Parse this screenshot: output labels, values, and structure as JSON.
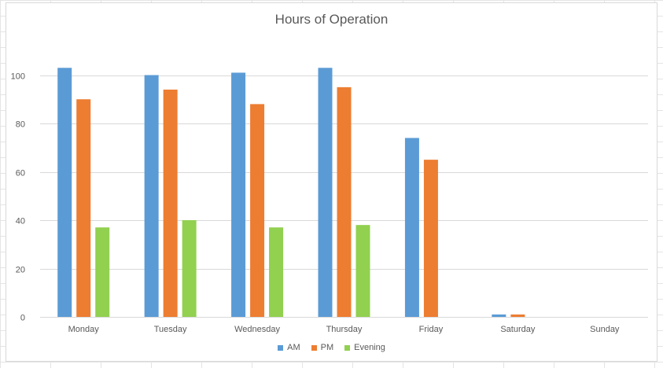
{
  "chart_data": {
    "type": "bar",
    "title": "Hours of Operation",
    "categories": [
      "Monday",
      "Tuesday",
      "Wednesday",
      "Thursday",
      "Friday",
      "Saturday",
      "Sunday"
    ],
    "series": [
      {
        "name": "AM",
        "color": "#5b9bd5",
        "values": [
          103,
          100,
          101,
          103,
          74,
          1,
          0
        ]
      },
      {
        "name": "PM",
        "color": "#ed7d31",
        "values": [
          90,
          94,
          88,
          95,
          65,
          1,
          0
        ]
      },
      {
        "name": "Evening",
        "color": "#92d050",
        "values": [
          37,
          40,
          37,
          38,
          0,
          0,
          0
        ]
      }
    ],
    "ylim": [
      0,
      120
    ],
    "yticks": [
      "0",
      "20",
      "40",
      "60",
      "80",
      "100"
    ],
    "grid": true,
    "legend_position": "bottom"
  }
}
